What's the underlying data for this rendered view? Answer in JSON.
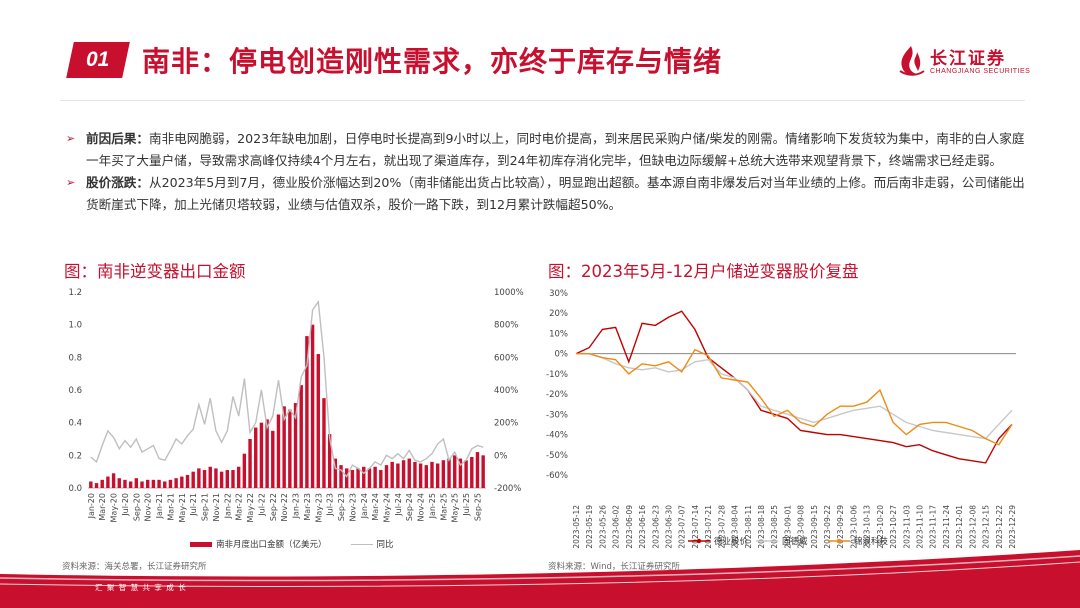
{
  "header": {
    "section_number": "01",
    "title": "南非：停电创造刚性需求，亦终于库存与情绪",
    "logo_cn": "长江证券",
    "logo_en": "CHANGJIANG SECURITIES"
  },
  "bullets": [
    {
      "label": "前因后果：",
      "text": "南非电网脆弱，2023年缺电加剧，日停电时长提高到9小时以上，同时电价提高，到来居民采购户储/柴发的刚需。情绪影响下发货较为集中，南非的白人家庭一年买了大量户储，导致需求高峰仅持续4个月左右，就出现了渠道库存，到24年初库存消化完毕，但缺电边际缓解+总统大选带来观望背景下，终端需求已经走弱。"
    },
    {
      "label": "股价涨跌：",
      "text": "从2023年5月到7月，德业股价涨幅达到20%（南非储能出货占比较高），明显跑出超额。基本源自南非爆发后对当年业绩的上修。而后南非走弱，公司储能出货断崖式下降，加上光储贝塔较弱，业绩与估值双杀，股价一路下跌，到12月累计跌幅超50%。"
    }
  ],
  "left_chart": {
    "title": "图：南非逆变器出口金额",
    "source": "资料来源：海关总署，长江证券研究所",
    "legend_bar": "南非月度出口金额（亿美元）",
    "legend_line": "同比"
  },
  "right_chart": {
    "title": "图：2023年5月-12月户储逆变器股价复盘",
    "source": "资料来源：Wind，长江证券研究所"
  },
  "footer_text": "汇 聚 智 慧    共 享 成 长",
  "colors": {
    "brand_red": "#c8102e",
    "yoy_gray": "#bfbfbf",
    "deye": "#c00000",
    "gudewei": "#c8c8c8",
    "jinlang": "#ed8b16"
  },
  "chart_data": [
    {
      "type": "bar",
      "categories": [
        "Jan-20",
        "Feb-20",
        "Mar-20",
        "Apr-20",
        "May-20",
        "Jun-20",
        "Jul-20",
        "Aug-20",
        "Sep-20",
        "Oct-20",
        "Nov-20",
        "Dec-20",
        "Jan-21",
        "Feb-21",
        "Mar-21",
        "Apr-21",
        "May-21",
        "Jun-21",
        "Jul-21",
        "Aug-21",
        "Sep-21",
        "Oct-21",
        "Nov-21",
        "Dec-21",
        "Jan-22",
        "Feb-22",
        "Mar-22",
        "Apr-22",
        "May-22",
        "Jun-22",
        "Jul-22",
        "Aug-22",
        "Sep-22",
        "Oct-22",
        "Nov-22",
        "Dec-22",
        "Jan-23",
        "Feb-23",
        "Mar-23",
        "Apr-23",
        "May-23",
        "Jun-23",
        "Jul-23",
        "Aug-23",
        "Sep-23",
        "Oct-23",
        "Nov-23",
        "Dec-23",
        "Jan-24",
        "Feb-24",
        "Mar-24",
        "Apr-24",
        "May-24",
        "Jun-24",
        "Jul-24",
        "Aug-24",
        "Sep-24",
        "Oct-24",
        "Nov-24",
        "Dec-24",
        "Jan-25",
        "Feb-25",
        "Mar-25",
        "Apr-25",
        "May-25",
        "Jun-25",
        "Jul-25",
        "Aug-25",
        "Sep-25",
        "Oct-25"
      ],
      "tick_labels": [
        "Jan-20",
        "Mar-20",
        "May-20",
        "Jul-20",
        "Sep-20",
        "Nov-20",
        "Jan-21",
        "Mar-21",
        "May-21",
        "Jul-21",
        "Sep-21",
        "Nov-21",
        "Jan-22",
        "Mar-22",
        "May-22",
        "Jul-22",
        "Sep-22",
        "Nov-22",
        "Jan-23",
        "Mar-23",
        "May-23",
        "Jul-23",
        "Sep-23",
        "Nov-23",
        "Jan-24",
        "Mar-24",
        "May-24",
        "Jul-24",
        "Sep-24",
        "Nov-24",
        "Jan-25",
        "Mar-25",
        "May-25",
        "Jul-25",
        "Sep-25"
      ],
      "series": [
        {
          "name": "南非月度出口金额（亿美元）",
          "axis": "left",
          "values": [
            0.04,
            0.03,
            0.05,
            0.07,
            0.09,
            0.06,
            0.05,
            0.04,
            0.06,
            0.04,
            0.05,
            0.05,
            0.05,
            0.04,
            0.05,
            0.06,
            0.07,
            0.08,
            0.1,
            0.12,
            0.11,
            0.13,
            0.12,
            0.1,
            0.11,
            0.11,
            0.13,
            0.21,
            0.3,
            0.37,
            0.4,
            0.42,
            0.35,
            0.45,
            0.5,
            0.48,
            0.52,
            0.63,
            0.93,
            1.0,
            0.82,
            0.55,
            0.33,
            0.18,
            0.14,
            0.12,
            0.11,
            0.12,
            0.13,
            0.12,
            0.13,
            0.11,
            0.14,
            0.16,
            0.15,
            0.17,
            0.18,
            0.16,
            0.15,
            0.14,
            0.16,
            0.15,
            0.17,
            0.18,
            0.2,
            0.18,
            0.17,
            0.19,
            0.22,
            0.2
          ]
        },
        {
          "name": "同比",
          "axis": "right",
          "values": [
            -10,
            -40,
            60,
            150,
            110,
            40,
            90,
            50,
            100,
            20,
            40,
            60,
            -20,
            -30,
            30,
            100,
            70,
            120,
            160,
            310,
            190,
            350,
            150,
            80,
            150,
            360,
            240,
            470,
            140,
            200,
            400,
            170,
            240,
            460,
            220,
            280,
            230,
            480,
            550,
            890,
            940,
            600,
            110,
            -80,
            -90,
            -130,
            -60,
            -80,
            -110,
            -80,
            -40,
            -60,
            0,
            -20,
            10,
            -20,
            30,
            -30,
            -40,
            -20,
            10,
            70,
            100,
            -30,
            20,
            -60,
            -30,
            40,
            60,
            50
          ]
        }
      ],
      "ylim_left": [
        0,
        1.2
      ],
      "yticks_left": [
        "0.0",
        "0.2",
        "0.4",
        "0.6",
        "0.8",
        "1.0",
        "1.2"
      ],
      "ylim_right": [
        -200,
        1000
      ],
      "yticks_right": [
        "-200%",
        "0%",
        "200%",
        "400%",
        "600%",
        "800%",
        "1000%"
      ],
      "legend": "bottom"
    },
    {
      "type": "line",
      "x": [
        "2023-05-12",
        "2023-05-19",
        "2023-05-26",
        "2023-06-02",
        "2023-06-09",
        "2023-06-16",
        "2023-06-23",
        "2023-06-30",
        "2023-07-07",
        "2023-07-14",
        "2023-07-21",
        "2023-07-28",
        "2023-08-04",
        "2023-08-11",
        "2023-08-18",
        "2023-08-25",
        "2023-09-01",
        "2023-09-08",
        "2023-09-15",
        "2023-09-22",
        "2023-09-29",
        "2023-10-06",
        "2023-10-13",
        "2023-10-20",
        "2023-10-27",
        "2023-11-03",
        "2023-11-10",
        "2023-11-17",
        "2023-11-24",
        "2023-12-01",
        "2023-12-08",
        "2023-12-15",
        "2023-12-22",
        "2023-12-29"
      ],
      "series": [
        {
          "name": "德业股价",
          "values": [
            0,
            3,
            12,
            13,
            -4,
            15,
            14,
            18,
            21,
            12,
            -2,
            -7,
            -12,
            -18,
            -28,
            -30,
            -32,
            -38,
            -39,
            -40,
            -40,
            -41,
            -42,
            -43,
            -44,
            -46,
            -45,
            -48,
            -50,
            -52,
            -53,
            -54,
            -42,
            -35
          ]
        },
        {
          "name": "固德威",
          "values": [
            0,
            0,
            -2,
            -5,
            -7,
            -8,
            -7,
            -9,
            -8,
            -4,
            -3,
            -10,
            -12,
            -18,
            -26,
            -28,
            -30,
            -32,
            -34,
            -32,
            -30,
            -28,
            -27,
            -26,
            -30,
            -34,
            -36,
            -38,
            -39,
            -40,
            -41,
            -42,
            -35,
            -28
          ]
        },
        {
          "name": "锦浪科技",
          "values": [
            0,
            0,
            -2,
            -3,
            -10,
            -5,
            -6,
            -4,
            -9,
            2,
            -1,
            -12,
            -13,
            -14,
            -22,
            -31,
            -28,
            -34,
            -36,
            -30,
            -26,
            -26,
            -24,
            -18,
            -34,
            -40,
            -35,
            -34,
            -34,
            -36,
            -38,
            -42,
            -45,
            -35
          ]
        }
      ],
      "ylim": [
        -60,
        30
      ],
      "yticks": [
        "30%",
        "20%",
        "10%",
        "0%",
        "-10%",
        "-20%",
        "-30%",
        "-40%",
        "-50%",
        "-60%"
      ],
      "legend": "bottom"
    }
  ]
}
